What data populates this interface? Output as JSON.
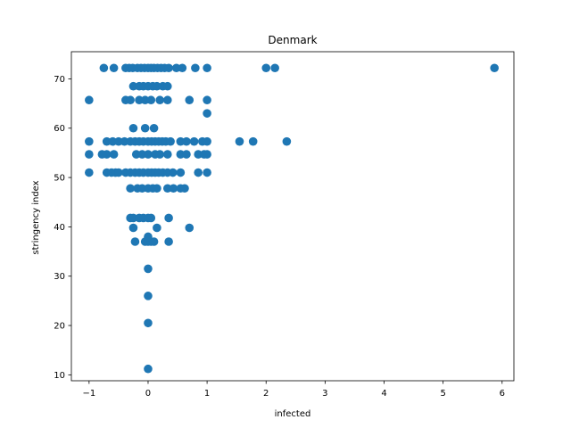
{
  "chart_data": {
    "type": "scatter",
    "title": "Denmark",
    "xlabel": "infected",
    "ylabel": "stringency index",
    "xlim": [
      -1.3,
      6.2
    ],
    "ylim": [
      8.8,
      75.5
    ],
    "x_ticks": [
      -1,
      0,
      1,
      2,
      3,
      4,
      5,
      6
    ],
    "y_ticks": [
      10,
      20,
      30,
      40,
      50,
      60,
      70
    ],
    "marker_color": "#1f77b4",
    "grid": false,
    "points": [
      [
        -0.75,
        72.2
      ],
      [
        -0.58,
        72.2
      ],
      [
        -0.38,
        72.2
      ],
      [
        -0.32,
        72.2
      ],
      [
        -0.26,
        72.2
      ],
      [
        -0.18,
        72.2
      ],
      [
        -0.12,
        72.2
      ],
      [
        -0.06,
        72.2
      ],
      [
        0.0,
        72.2
      ],
      [
        0.05,
        72.2
      ],
      [
        0.1,
        72.2
      ],
      [
        0.16,
        72.2
      ],
      [
        0.22,
        72.2
      ],
      [
        0.28,
        72.2
      ],
      [
        0.35,
        72.2
      ],
      [
        0.48,
        72.2
      ],
      [
        0.58,
        72.2
      ],
      [
        0.8,
        72.2
      ],
      [
        1.0,
        72.2
      ],
      [
        2.0,
        72.2
      ],
      [
        2.15,
        72.2
      ],
      [
        5.87,
        72.2
      ],
      [
        -1.0,
        65.7
      ],
      [
        -0.38,
        65.7
      ],
      [
        -0.3,
        65.7
      ],
      [
        -0.15,
        65.7
      ],
      [
        -0.05,
        65.7
      ],
      [
        0.05,
        65.7
      ],
      [
        0.2,
        65.7
      ],
      [
        0.33,
        65.7
      ],
      [
        0.7,
        65.7
      ],
      [
        1.0,
        65.7
      ],
      [
        1.0,
        63.0
      ],
      [
        -0.25,
        68.5
      ],
      [
        -0.15,
        68.5
      ],
      [
        -0.08,
        68.5
      ],
      [
        0.0,
        68.5
      ],
      [
        0.08,
        68.5
      ],
      [
        0.15,
        68.5
      ],
      [
        0.25,
        68.5
      ],
      [
        0.33,
        68.5
      ],
      [
        -0.25,
        60.0
      ],
      [
        -0.05,
        60.0
      ],
      [
        0.1,
        60.0
      ],
      [
        -1.0,
        57.3
      ],
      [
        -0.7,
        57.3
      ],
      [
        -0.6,
        57.3
      ],
      [
        -0.5,
        57.3
      ],
      [
        -0.4,
        57.3
      ],
      [
        -0.3,
        57.3
      ],
      [
        -0.22,
        57.3
      ],
      [
        -0.15,
        57.3
      ],
      [
        -0.08,
        57.3
      ],
      [
        0.0,
        57.3
      ],
      [
        0.06,
        57.3
      ],
      [
        0.12,
        57.3
      ],
      [
        0.18,
        57.3
      ],
      [
        0.24,
        57.3
      ],
      [
        0.3,
        57.3
      ],
      [
        0.38,
        57.3
      ],
      [
        0.55,
        57.3
      ],
      [
        0.65,
        57.3
      ],
      [
        0.78,
        57.3
      ],
      [
        0.92,
        57.3
      ],
      [
        1.0,
        57.3
      ],
      [
        1.55,
        57.3
      ],
      [
        1.78,
        57.3
      ],
      [
        2.35,
        57.3
      ],
      [
        -1.0,
        54.7
      ],
      [
        -0.78,
        54.7
      ],
      [
        -0.7,
        54.7
      ],
      [
        -0.58,
        54.7
      ],
      [
        -0.2,
        54.7
      ],
      [
        -0.1,
        54.7
      ],
      [
        0.0,
        54.7
      ],
      [
        0.12,
        54.7
      ],
      [
        0.2,
        54.7
      ],
      [
        0.33,
        54.7
      ],
      [
        0.55,
        54.7
      ],
      [
        0.65,
        54.7
      ],
      [
        0.85,
        54.7
      ],
      [
        0.95,
        54.7
      ],
      [
        1.0,
        54.7
      ],
      [
        -1.0,
        51.0
      ],
      [
        -0.7,
        51.0
      ],
      [
        -0.62,
        51.0
      ],
      [
        -0.55,
        51.0
      ],
      [
        -0.5,
        51.0
      ],
      [
        -0.38,
        51.0
      ],
      [
        -0.3,
        51.0
      ],
      [
        -0.22,
        51.0
      ],
      [
        -0.15,
        51.0
      ],
      [
        -0.08,
        51.0
      ],
      [
        0.0,
        51.0
      ],
      [
        0.06,
        51.0
      ],
      [
        0.12,
        51.0
      ],
      [
        0.18,
        51.0
      ],
      [
        0.25,
        51.0
      ],
      [
        0.33,
        51.0
      ],
      [
        0.42,
        51.0
      ],
      [
        0.55,
        51.0
      ],
      [
        0.85,
        51.0
      ],
      [
        1.0,
        51.0
      ],
      [
        -0.3,
        47.8
      ],
      [
        -0.18,
        47.8
      ],
      [
        -0.1,
        47.8
      ],
      [
        0.0,
        47.8
      ],
      [
        0.08,
        47.8
      ],
      [
        0.15,
        47.8
      ],
      [
        0.33,
        47.8
      ],
      [
        0.43,
        47.8
      ],
      [
        0.55,
        47.8
      ],
      [
        0.62,
        47.8
      ],
      [
        -0.3,
        41.8
      ],
      [
        -0.25,
        41.8
      ],
      [
        -0.15,
        41.8
      ],
      [
        -0.08,
        41.8
      ],
      [
        0.0,
        41.8
      ],
      [
        0.05,
        41.8
      ],
      [
        0.35,
        41.8
      ],
      [
        -0.25,
        39.8
      ],
      [
        0.15,
        39.8
      ],
      [
        0.7,
        39.8
      ],
      [
        -0.22,
        37.0
      ],
      [
        -0.05,
        37.0
      ],
      [
        0.0,
        37.0
      ],
      [
        0.05,
        37.0
      ],
      [
        0.1,
        37.0
      ],
      [
        0.35,
        37.0
      ],
      [
        0.0,
        38.0
      ],
      [
        0.0,
        31.5
      ],
      [
        0.0,
        26.0
      ],
      [
        0.0,
        20.5
      ],
      [
        0.0,
        11.2
      ]
    ]
  }
}
